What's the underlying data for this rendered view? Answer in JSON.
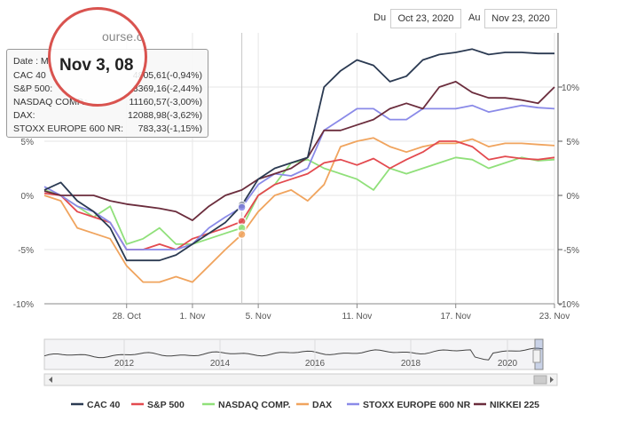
{
  "header": {
    "brand_fragment": "ourse.com",
    "from_label": "Du",
    "from_date": "Oct 23, 2020",
    "to_label": "Au",
    "to_date": "Nov 23, 2020"
  },
  "tooltip": {
    "date_label": "Date : M",
    "magnified_date": "Nov 3, 08",
    "rows": [
      {
        "name": "CAC 40",
        "value": "4805,61(-0,94%)"
      },
      {
        "name": "S&P 500:",
        "value": "3369,16(-2,44%)"
      },
      {
        "name": "NASDAQ COMP.:",
        "value": "11160,57(-3,00%)"
      },
      {
        "name": "DAX:",
        "value": "12088,98(-3,62%)"
      },
      {
        "name": "STOXX EUROPE 600 NR:",
        "value": "783,33(-1,15%)"
      }
    ]
  },
  "colors": {
    "CAC 40": "#2b3a52",
    "S&P 500": "#e34a4f",
    "NASDAQ COMP.": "#90e07a",
    "DAX": "#f0a45e",
    "STOXX EUROPE 600 NR": "#8a8ae8",
    "NIKKEI 225": "#6b2d3d"
  },
  "chart_data": {
    "type": "line",
    "ylim": [
      -10,
      15
    ],
    "y_ticks": [
      "-10%",
      "-5%",
      "0%",
      "5%",
      "10%"
    ],
    "y_tick_values": [
      -10,
      -5,
      0,
      5,
      10
    ],
    "x_ticks": [
      "28. Oct",
      "1. Nov",
      "5. Nov",
      "11. Nov",
      "17. Nov",
      "23. Nov"
    ],
    "x_tick_days": [
      5,
      9,
      13,
      19,
      25,
      31
    ],
    "x": [
      0,
      1,
      2,
      3,
      4,
      5,
      6,
      7,
      8,
      9,
      10,
      11,
      12,
      13,
      14,
      15,
      16,
      17,
      18,
      19,
      20,
      21,
      22,
      23,
      24,
      25,
      26,
      27,
      28,
      29,
      30,
      31
    ],
    "series": [
      {
        "name": "CAC 40",
        "values": [
          0.5,
          1.2,
          -0.5,
          -1.5,
          -3,
          -6,
          -6,
          -6,
          -5.5,
          -4.5,
          -3.5,
          -2.5,
          -0.9,
          1.5,
          2.5,
          3,
          3.5,
          10,
          11.5,
          12.5,
          12,
          10.5,
          11,
          12.5,
          13,
          13.2,
          13.5,
          13,
          13.2,
          13.2,
          13.1,
          13.1
        ]
      },
      {
        "name": "S&P 500",
        "values": [
          0.2,
          0,
          -1.5,
          -2,
          -2.5,
          -5,
          -5,
          -4.5,
          -5,
          -4,
          -3.5,
          -3,
          -2.4,
          0,
          1,
          1.5,
          2,
          3,
          3.3,
          2.8,
          3.4,
          2.5,
          3.3,
          4,
          5,
          5,
          4.5,
          3.3,
          3.6,
          3.4,
          3.3,
          3.5
        ]
      },
      {
        "name": "NASDAQ COMP.",
        "values": [
          0.5,
          0,
          -1,
          -2,
          -1,
          -4.5,
          -4,
          -3,
          -4.5,
          -4.5,
          -4,
          -3.5,
          -3,
          0,
          1,
          3,
          3.3,
          2.5,
          2,
          1.5,
          0.5,
          2.5,
          2,
          2.5,
          3,
          3.5,
          3.3,
          2.5,
          3,
          3.5,
          3.2,
          3.3
        ]
      },
      {
        "name": "DAX",
        "values": [
          0,
          -0.5,
          -3,
          -3.5,
          -4,
          -6.5,
          -8,
          -8,
          -7.5,
          -8,
          -6.5,
          -5,
          -3.6,
          -1.5,
          0,
          0.5,
          -0.5,
          1,
          4.5,
          5,
          5.3,
          4.5,
          4,
          4.5,
          4.8,
          4.8,
          5.2,
          4.5,
          4.8,
          4.8,
          4.7,
          4.6
        ]
      },
      {
        "name": "STOXX EUROPE 600 NR",
        "values": [
          0.8,
          0,
          -1,
          -1.5,
          -2.5,
          -5,
          -5,
          -5,
          -5,
          -4.5,
          -3,
          -2,
          -1.1,
          1,
          2,
          1.8,
          2.5,
          6,
          7,
          8,
          8,
          7,
          7,
          8,
          8,
          8,
          8.3,
          7.7,
          8,
          8.3,
          8.1,
          8
        ]
      },
      {
        "name": "NIKKEI 225",
        "values": [
          0.4,
          0,
          0,
          0,
          -0.5,
          -0.8,
          -1,
          -1.2,
          -1.5,
          -2.3,
          -1,
          0,
          0.5,
          1.5,
          2,
          2.5,
          3.5,
          6,
          6,
          6.5,
          7,
          8,
          8.5,
          8,
          10,
          10.5,
          9.5,
          9,
          9,
          8.8,
          8.5,
          10
        ]
      }
    ],
    "navigator": {
      "x_ticks": [
        "2012",
        "2014",
        "2016",
        "2018",
        "2020"
      ]
    },
    "legend_position": "bottom"
  }
}
